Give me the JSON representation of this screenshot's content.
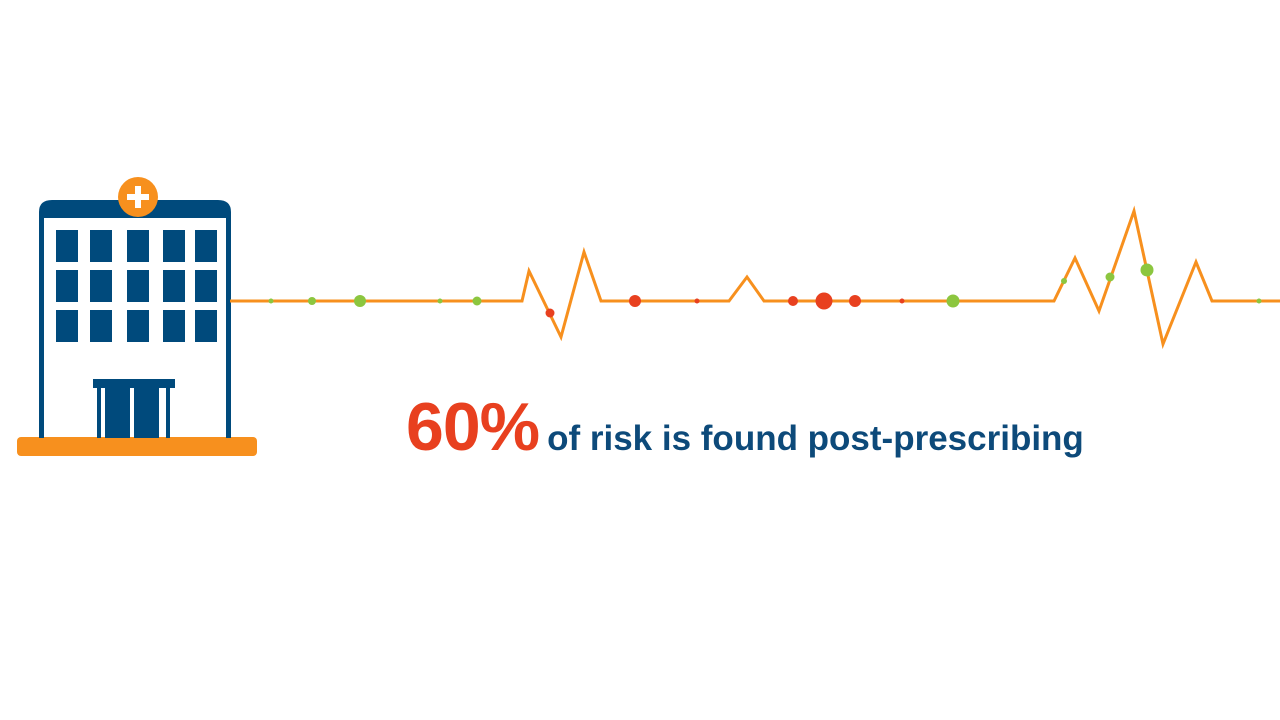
{
  "headline": {
    "percent": "60%",
    "text": "of risk is found post-prescribing"
  },
  "icons": {
    "building": "hospital-building-icon",
    "cross": "medical-cross-icon",
    "line": "heartbeat-line"
  },
  "colors": {
    "navy": "#004a7c",
    "orange": "#f7901e",
    "red": "#e8401f",
    "green": "#8cc63f",
    "text_navy": "#0d4a7a"
  }
}
